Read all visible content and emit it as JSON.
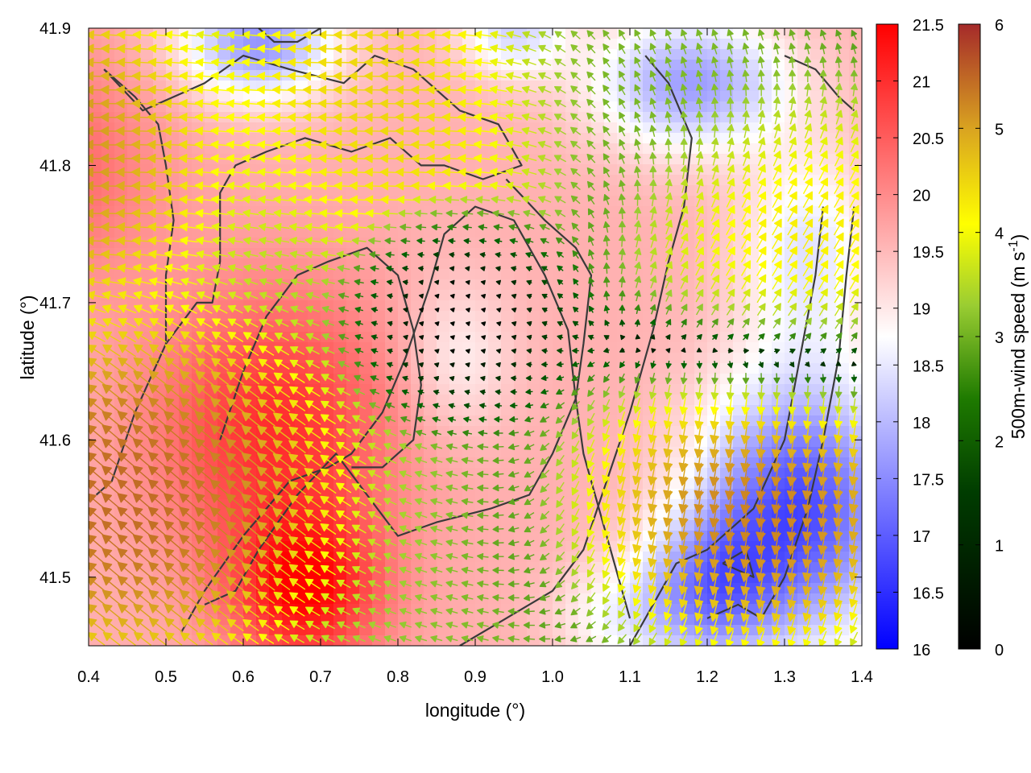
{
  "chart_data": {
    "type": "heatmap",
    "xlabel": "longitude (°)",
    "ylabel": "latitude (°)",
    "xlim": [
      0.4,
      1.4
    ],
    "ylim": [
      41.45,
      41.9
    ],
    "xticks": [
      "0.4",
      "0.5",
      "0.6",
      "0.7",
      "0.8",
      "0.9",
      "1.0",
      "1.1",
      "1.2",
      "1.3",
      "1.4"
    ],
    "xtick_values": [
      0.4,
      0.5,
      0.6,
      0.7,
      0.8,
      0.9,
      1.0,
      1.1,
      1.2,
      1.3,
      1.4
    ],
    "yticks": [
      "41.5",
      "41.6",
      "41.7",
      "41.8",
      "41.9"
    ],
    "ytick_values": [
      41.5,
      41.6,
      41.7,
      41.8,
      41.9
    ],
    "temperature_colorbar": {
      "range": [
        16,
        21.5
      ],
      "ticks": [
        "16",
        "16.5",
        "17",
        "17.5",
        "18",
        "18.5",
        "19",
        "19.5",
        "20",
        "20.5",
        "21",
        "21.5"
      ],
      "tick_values": [
        16,
        16.5,
        17,
        17.5,
        18,
        18.5,
        19,
        19.5,
        20,
        20.5,
        21,
        21.5
      ],
      "colors": [
        "#0000ff",
        "#ffffff",
        "#ff0000"
      ]
    },
    "wind_colorbar": {
      "label": "500m-wind speed (m s",
      "label_superscript": "-1",
      "label_close": ")",
      "range": [
        0,
        6
      ],
      "ticks": [
        "0",
        "1",
        "2",
        "3",
        "4",
        "5",
        "6"
      ],
      "tick_values": [
        0,
        1,
        2,
        3,
        4,
        5,
        6
      ],
      "colors": [
        "#000000",
        "#006400",
        "#9acd32",
        "#ffff00",
        "#daa520",
        "#a52a2a"
      ]
    },
    "temperature_field": {
      "base": 19.6,
      "features": [
        {
          "lon": 0.64,
          "lat": 41.61,
          "amp": 1.4,
          "sx": 0.11,
          "sy": 0.07
        },
        {
          "lon": 0.68,
          "lat": 41.49,
          "amp": 1.7,
          "sx": 0.07,
          "sy": 0.04
        },
        {
          "lon": 0.35,
          "lat": 41.8,
          "amp": 0.8,
          "sx": 0.1,
          "sy": 0.06
        },
        {
          "lon": 0.88,
          "lat": 41.66,
          "amp": -0.7,
          "sx": 0.05,
          "sy": 0.04
        },
        {
          "lon": 0.62,
          "lat": 41.89,
          "amp": -2.0,
          "sx": 0.07,
          "sy": 0.03
        },
        {
          "lon": 1.18,
          "lat": 41.86,
          "amp": -1.9,
          "sx": 0.09,
          "sy": 0.035
        },
        {
          "lon": 0.95,
          "lat": 41.9,
          "amp": -1.3,
          "sx": 0.05,
          "sy": 0.025
        },
        {
          "lon": 1.32,
          "lat": 41.55,
          "amp": -2.8,
          "sx": 0.09,
          "sy": 0.07
        },
        {
          "lon": 1.2,
          "lat": 41.49,
          "amp": -1.8,
          "sx": 0.06,
          "sy": 0.04
        },
        {
          "lon": 1.33,
          "lat": 41.74,
          "amp": -1.1,
          "sx": 0.06,
          "sy": 0.05
        },
        {
          "lon": 1.08,
          "lat": 41.47,
          "amp": -0.8,
          "sx": 0.06,
          "sy": 0.03
        }
      ]
    },
    "wind_field": {
      "grid_step_lon": 0.02,
      "grid_step_lat": 0.01,
      "features": [
        {
          "lon": 0.88,
          "lat": 41.69,
          "radius": 0.18,
          "role": "calm centre, speed below 0.5"
        },
        {
          "lon": 0.46,
          "lat": 41.56,
          "speed": 5.8,
          "direction": "to north-west"
        },
        {
          "lon": 0.3,
          "lat": 41.81,
          "speed": 5.7,
          "direction": "to west"
        },
        {
          "lon": 1.27,
          "lat": 41.56,
          "speed": 5.8,
          "direction": "to south"
        },
        {
          "lon": 1.31,
          "lat": 41.75,
          "speed": 5.2,
          "direction": "to north-east"
        },
        {
          "lon": 0.85,
          "lat": 41.86,
          "speed": 4.6,
          "direction": "to west"
        },
        {
          "lon": 1.12,
          "lat": 41.88,
          "speed": 2.2,
          "direction": "to north"
        }
      ]
    },
    "coastline": {
      "color": "#3a3a3a",
      "lines": [
        [
          [
            0.41,
            41.56
          ],
          [
            0.43,
            41.57
          ],
          [
            0.46,
            41.62
          ],
          [
            0.5,
            41.67
          ],
          [
            0.54,
            41.7
          ],
          [
            0.56,
            41.7
          ],
          [
            0.57,
            41.73
          ],
          [
            0.57,
            41.78
          ],
          [
            0.59,
            41.8
          ],
          [
            0.63,
            41.81
          ],
          [
            0.68,
            41.82
          ],
          [
            0.74,
            41.81
          ],
          [
            0.79,
            41.82
          ],
          [
            0.83,
            41.8
          ],
          [
            0.86,
            41.8
          ],
          [
            0.91,
            41.79
          ],
          [
            0.96,
            41.8
          ],
          [
            0.93,
            41.83
          ],
          [
            0.88,
            41.84
          ],
          [
            0.82,
            41.87
          ],
          [
            0.77,
            41.88
          ],
          [
            0.73,
            41.86
          ],
          [
            0.66,
            41.87
          ],
          [
            0.6,
            41.88
          ],
          [
            0.55,
            41.86
          ],
          [
            0.51,
            41.85
          ],
          [
            0.47,
            41.84
          ],
          [
            0.42,
            41.87
          ]
        ],
        [
          [
            0.42,
            41.87
          ],
          [
            0.46,
            41.85
          ],
          [
            0.49,
            41.83
          ],
          [
            0.5,
            41.8
          ],
          [
            0.51,
            41.76
          ],
          [
            0.5,
            41.72
          ],
          [
            0.5,
            41.67
          ]
        ],
        [
          [
            0.55,
            41.48
          ],
          [
            0.59,
            41.49
          ],
          [
            0.62,
            41.52
          ],
          [
            0.67,
            41.56
          ],
          [
            0.72,
            41.59
          ],
          [
            0.76,
            41.56
          ],
          [
            0.8,
            41.53
          ],
          [
            0.85,
            41.54
          ],
          [
            0.92,
            41.55
          ],
          [
            0.97,
            41.56
          ],
          [
            1.0,
            41.59
          ],
          [
            1.03,
            41.63
          ],
          [
            1.04,
            41.67
          ],
          [
            1.05,
            41.72
          ],
          [
            1.03,
            41.74
          ],
          [
            0.99,
            41.76
          ],
          [
            0.94,
            41.79
          ]
        ],
        [
          [
            0.52,
            41.46
          ],
          [
            0.55,
            41.49
          ],
          [
            0.6,
            41.53
          ],
          [
            0.66,
            41.57
          ],
          [
            0.71,
            41.58
          ],
          [
            0.74,
            41.59
          ],
          [
            0.78,
            41.62
          ],
          [
            0.81,
            41.66
          ],
          [
            0.84,
            41.71
          ],
          [
            0.86,
            41.75
          ],
          [
            0.9,
            41.77
          ],
          [
            0.95,
            41.76
          ],
          [
            0.99,
            41.72
          ],
          [
            1.02,
            41.68
          ],
          [
            1.03,
            41.63
          ],
          [
            1.04,
            41.59
          ],
          [
            1.06,
            41.55
          ],
          [
            1.08,
            41.51
          ],
          [
            1.1,
            41.47
          ]
        ],
        [
          [
            0.57,
            41.6
          ],
          [
            0.6,
            41.65
          ],
          [
            0.63,
            41.69
          ],
          [
            0.67,
            41.72
          ],
          [
            0.71,
            41.73
          ],
          [
            0.76,
            41.74
          ],
          [
            0.8,
            41.72
          ],
          [
            0.82,
            41.68
          ],
          [
            0.83,
            41.64
          ],
          [
            0.82,
            41.6
          ],
          [
            0.78,
            41.58
          ],
          [
            0.74,
            41.58
          ]
        ],
        [
          [
            0.88,
            41.45
          ],
          [
            0.94,
            41.47
          ],
          [
            1.0,
            41.49
          ],
          [
            1.04,
            41.52
          ],
          [
            1.07,
            41.57
          ],
          [
            1.1,
            41.62
          ],
          [
            1.13,
            41.68
          ],
          [
            1.15,
            41.73
          ],
          [
            1.17,
            41.77
          ],
          [
            1.18,
            41.82
          ],
          [
            1.15,
            41.86
          ],
          [
            1.12,
            41.88
          ]
        ],
        [
          [
            1.2,
            41.47
          ],
          [
            1.24,
            41.48
          ],
          [
            1.27,
            41.47
          ],
          [
            1.3,
            41.5
          ],
          [
            1.33,
            41.55
          ],
          [
            1.35,
            41.6
          ],
          [
            1.37,
            41.66
          ],
          [
            1.38,
            41.72
          ],
          [
            1.39,
            41.77
          ]
        ],
        [
          [
            1.1,
            41.45
          ],
          [
            1.13,
            41.48
          ],
          [
            1.16,
            41.51
          ],
          [
            1.2,
            41.52
          ],
          [
            1.26,
            41.55
          ],
          [
            1.3,
            41.6
          ],
          [
            1.32,
            41.66
          ],
          [
            1.34,
            41.72
          ],
          [
            1.35,
            41.77
          ]
        ],
        [
          [
            1.22,
            41.51
          ],
          [
            1.25,
            41.52
          ],
          [
            1.26,
            41.5
          ],
          [
            1.22,
            41.51
          ]
        ],
        [
          [
            1.3,
            41.88
          ],
          [
            1.34,
            41.87
          ],
          [
            1.37,
            41.85
          ],
          [
            1.39,
            41.84
          ]
        ],
        [
          [
            0.62,
            41.9
          ],
          [
            0.64,
            41.89
          ],
          [
            0.67,
            41.89
          ],
          [
            0.7,
            41.9
          ]
        ]
      ]
    }
  }
}
